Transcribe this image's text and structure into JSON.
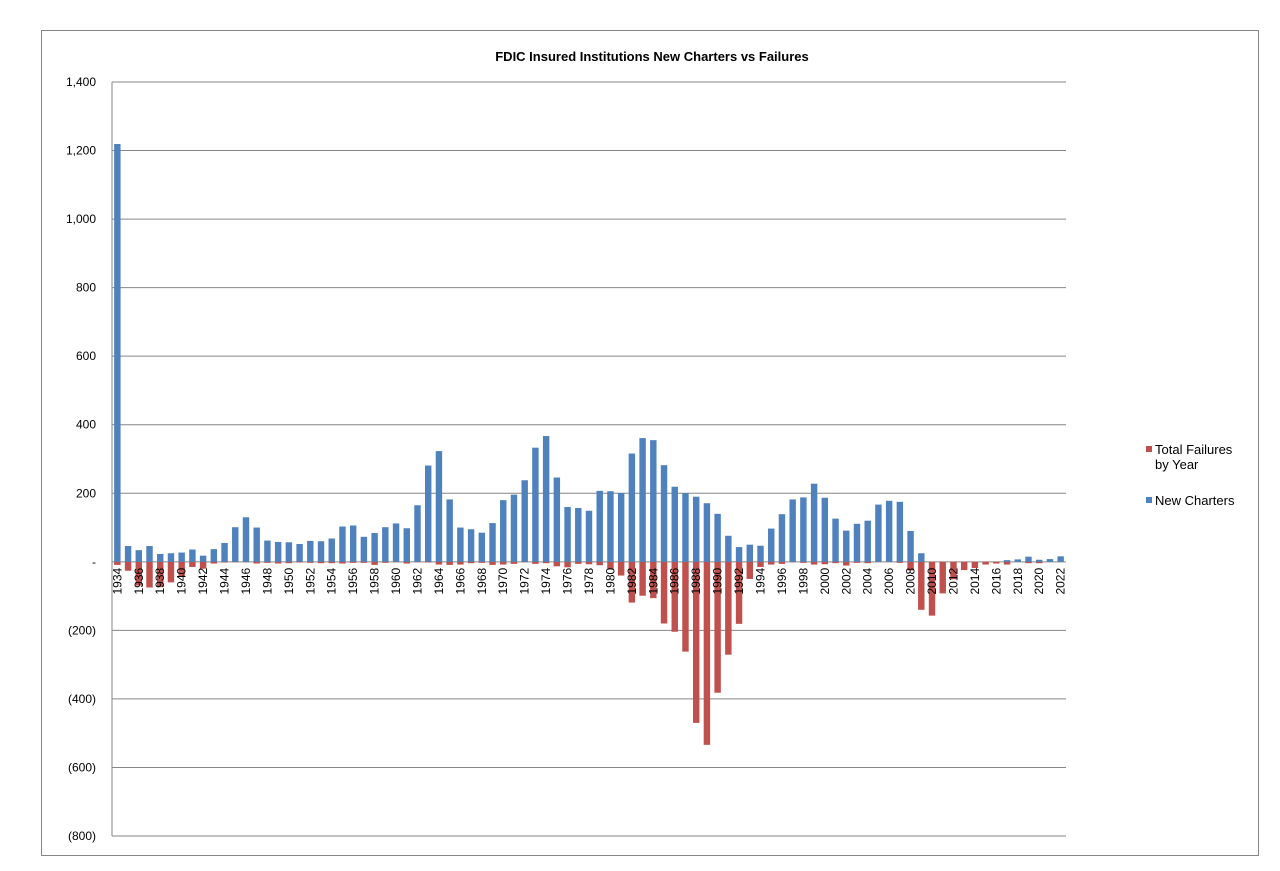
{
  "chart_data": {
    "type": "bar",
    "title": "FDIC Insured Institutions New Charters vs Failures",
    "xlabel": "",
    "ylabel": "",
    "ylim": [
      -800,
      1400
    ],
    "yticks": [
      1400,
      1200,
      1000,
      800,
      600,
      400,
      200,
      0,
      -200,
      -400,
      -600,
      -800
    ],
    "ytick_labels": [
      "1,400",
      "1,200",
      "1,000",
      "800",
      "600",
      "400",
      "200",
      "-",
      "(200)",
      "(400)",
      "(600)",
      "(800)"
    ],
    "grid": true,
    "legend_position": "right",
    "stacked": true,
    "categories": [
      "1934",
      "1935",
      "1936",
      "1937",
      "1938",
      "1939",
      "1940",
      "1941",
      "1942",
      "1943",
      "1944",
      "1945",
      "1946",
      "1947",
      "1948",
      "1949",
      "1950",
      "1951",
      "1952",
      "1953",
      "1954",
      "1955",
      "1956",
      "1957",
      "1958",
      "1959",
      "1960",
      "1961",
      "1962",
      "1963",
      "1964",
      "1965",
      "1966",
      "1967",
      "1968",
      "1969",
      "1970",
      "1971",
      "1972",
      "1973",
      "1974",
      "1975",
      "1976",
      "1977",
      "1978",
      "1979",
      "1980",
      "1981",
      "1982",
      "1983",
      "1984",
      "1985",
      "1986",
      "1987",
      "1988",
      "1989",
      "1990",
      "1991",
      "1992",
      "1993",
      "1994",
      "1995",
      "1996",
      "1997",
      "1998",
      "1999",
      "2000",
      "2001",
      "2002",
      "2003",
      "2004",
      "2005",
      "2006",
      "2007",
      "2008",
      "2009",
      "2010",
      "2011",
      "2012",
      "2013",
      "2014",
      "2015",
      "2016",
      "2017",
      "2018",
      "2019",
      "2020",
      "2021",
      "2022"
    ],
    "xtick_labels": [
      "1934",
      "1936",
      "1938",
      "1940",
      "1942",
      "1944",
      "1946",
      "1948",
      "1950",
      "1952",
      "1954",
      "1956",
      "1958",
      "1960",
      "1962",
      "1964",
      "1966",
      "1968",
      "1970",
      "1972",
      "1974",
      "1976",
      "1978",
      "1980",
      "1982",
      "1984",
      "1986",
      "1988",
      "1990",
      "1992",
      "1994",
      "1996",
      "1998",
      "2000",
      "2002",
      "2004",
      "2006",
      "2008",
      "2010",
      "2012",
      "2014",
      "2016",
      "2018",
      "2020",
      "2022"
    ],
    "series": [
      {
        "name": "Total Failures by Year",
        "color": "#C0504D",
        "values": [
          -9,
          -26,
          -69,
          -75,
          -74,
          -60,
          -43,
          -15,
          -20,
          -5,
          -2,
          -1,
          -1,
          -5,
          -3,
          -5,
          -4,
          -2,
          -3,
          -4,
          -4,
          -5,
          -3,
          -3,
          -9,
          -3,
          -1,
          -5,
          -1,
          -2,
          -8,
          -9,
          -8,
          -4,
          -3,
          -9,
          -8,
          -6,
          -1,
          -6,
          -4,
          -13,
          -16,
          -6,
          -7,
          -10,
          -22,
          -40,
          -119,
          -99,
          -106,
          -180,
          -204,
          -262,
          -470,
          -534,
          -382,
          -271,
          -181,
          -50,
          -15,
          -8,
          -6,
          -1,
          -3,
          -8,
          -7,
          -4,
          -11,
          -3,
          -4,
          0,
          0,
          -3,
          -25,
          -140,
          -157,
          -92,
          -51,
          -24,
          -18,
          -8,
          -5,
          -8,
          0,
          -4,
          -4,
          0,
          0
        ]
      },
      {
        "name": "New Charters",
        "color": "#4F81BD",
        "values": [
          1219,
          46,
          34,
          46,
          23,
          25,
          27,
          36,
          18,
          37,
          55,
          101,
          130,
          100,
          62,
          58,
          57,
          52,
          61,
          60,
          68,
          103,
          106,
          73,
          84,
          101,
          112,
          98,
          165,
          281,
          323,
          182,
          100,
          95,
          85,
          113,
          180,
          196,
          238,
          333,
          367,
          246,
          160,
          157,
          149,
          207,
          206,
          201,
          316,
          361,
          355,
          282,
          219,
          200,
          190,
          171,
          140,
          76,
          43,
          50,
          47,
          97,
          139,
          182,
          188,
          228,
          187,
          126,
          91,
          111,
          120,
          167,
          178,
          175,
          90,
          25,
          0,
          0,
          0,
          0,
          0,
          0,
          0,
          5,
          7,
          15,
          6,
          8,
          16
        ]
      }
    ]
  }
}
